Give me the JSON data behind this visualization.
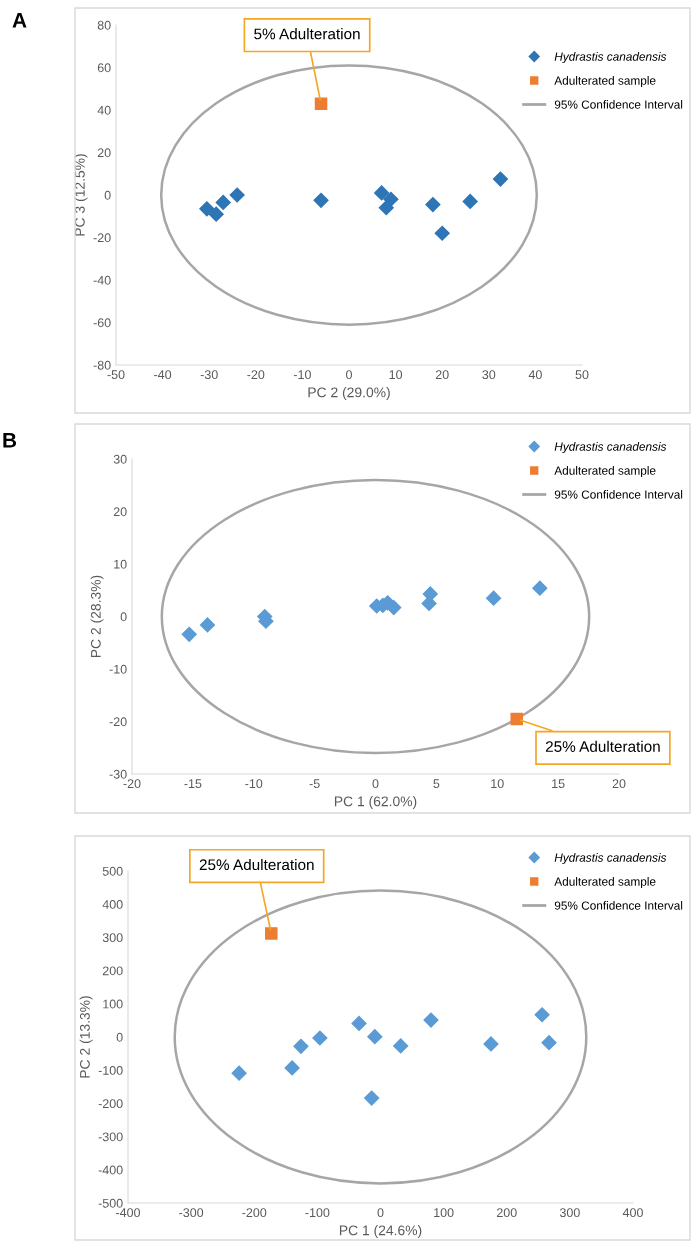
{
  "chart_data": [
    {
      "type": "scatter",
      "xlabel": "PC 2 (29.0%)",
      "ylabel": "PC 3 (12.5%)",
      "xlim": [
        -50,
        50
      ],
      "ylim": [
        -80,
        80
      ],
      "xticks": [
        -50,
        -40,
        -30,
        -20,
        -10,
        0,
        10,
        20,
        30,
        40,
        50
      ],
      "yticks": [
        -80,
        -60,
        -40,
        -20,
        0,
        20,
        40,
        60,
        80
      ],
      "legend": "top right",
      "grid": false,
      "annotations": [
        "A",
        {
          "text": "5% Adulteration",
          "x": -6,
          "y": 43
        }
      ],
      "series": [
        {
          "name": "Hydrastis canadensis",
          "type": "scatter",
          "marker": "diamond",
          "color": "#2e75b6",
          "x": [
            -30.5,
            -28.5,
            -27,
            -24,
            -6,
            7,
            8,
            9,
            18,
            20,
            26,
            32.5
          ],
          "values": [
            -6.5,
            -9,
            -3.5,
            0,
            -2.5,
            1,
            -6,
            -2,
            -4.5,
            -18,
            -3,
            7.5
          ]
        },
        {
          "name": "Adulterated sample",
          "type": "scatter",
          "marker": "square",
          "color": "#ed7d31",
          "x": [
            -6
          ],
          "values": [
            43
          ]
        },
        {
          "name": "95% Confidence Interval",
          "type": "line",
          "line_style": "solid",
          "color": "#a6a6a6"
        }
      ]
    },
    {
      "type": "scatter",
      "xlabel": "PC 1 (62.0%)",
      "ylabel": "PC 2 (28.3%)",
      "xlim": [
        -20,
        20
      ],
      "ylim": [
        -30,
        30
      ],
      "xticks": [
        -20,
        -15,
        -10,
        -5,
        0,
        5,
        10,
        15,
        20
      ],
      "yticks": [
        -30,
        -20,
        -10,
        0,
        10,
        20,
        30
      ],
      "legend": "top right",
      "grid": false,
      "annotations": [
        "B",
        {
          "text": "25% Adulteration",
          "x": 11.6,
          "y": -19.5
        }
      ],
      "series": [
        {
          "name": "Hydrastis canadensis",
          "type": "scatter",
          "marker": "diamond",
          "color": "#5b9bd5",
          "x": [
            -15.3,
            -13.8,
            -9.1,
            -9.0,
            0.1,
            0.6,
            1.0,
            1.5,
            4.4,
            4.5,
            9.7,
            13.5
          ],
          "values": [
            -3.4,
            -1.6,
            0,
            -0.9,
            2.0,
            2.1,
            2.6,
            1.7,
            2.5,
            4.3,
            3.5,
            5.4
          ]
        },
        {
          "name": "Adulterated sample",
          "type": "scatter",
          "marker": "square",
          "color": "#ed7d31",
          "x": [
            11.6
          ],
          "values": [
            -19.5
          ]
        },
        {
          "name": "95% Confidence Interval",
          "type": "line",
          "line_style": "solid",
          "color": "#a6a6a6"
        }
      ]
    },
    {
      "type": "scatter",
      "xlabel": "PC 1 (24.6%)",
      "ylabel": "PC 2 (13.3%)",
      "xlim": [
        -400,
        400
      ],
      "ylim": [
        -500,
        500
      ],
      "xticks": [
        -400,
        -300,
        -200,
        -100,
        0,
        100,
        200,
        300,
        400
      ],
      "yticks": [
        -500,
        -400,
        -300,
        -200,
        -100,
        0,
        100,
        200,
        300,
        400,
        500
      ],
      "legend": "top right",
      "grid": false,
      "annotations": [
        {
          "text": "25% Adulteration",
          "x": -173,
          "y": 312
        }
      ],
      "series": [
        {
          "name": "Hydrastis canadensis",
          "type": "scatter",
          "marker": "diamond",
          "color": "#5b9bd5",
          "x": [
            -224,
            -140,
            -126,
            -96,
            -34,
            -9,
            32,
            80,
            -14,
            175,
            256,
            267
          ],
          "values": [
            -109,
            -93,
            -28,
            -3,
            41,
            1,
            -27,
            51,
            -184,
            -21,
            67,
            -17
          ]
        },
        {
          "name": "Adulterated sample",
          "type": "scatter",
          "marker": "square",
          "color": "#ed7d31",
          "x": [
            -173
          ],
          "values": [
            312
          ]
        },
        {
          "name": "95% Confidence Interval",
          "type": "line",
          "line_style": "solid",
          "color": "#a6a6a6"
        }
      ]
    }
  ]
}
